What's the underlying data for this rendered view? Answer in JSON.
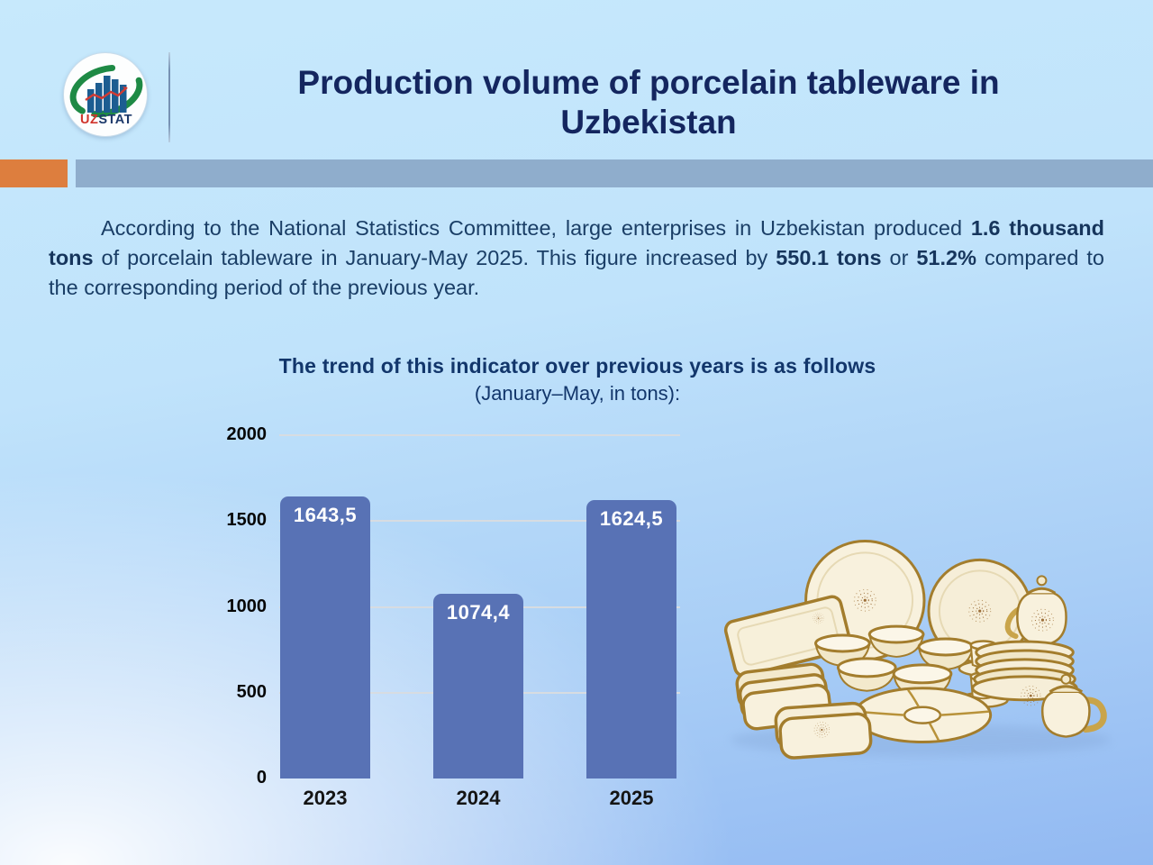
{
  "header": {
    "title_line1": "Production volume of porcelain tableware in",
    "title_line2": "Uzbekistan",
    "logo_uz": "UZ",
    "logo_stat": "STAT"
  },
  "colors": {
    "accent_orange": "#dd7e3e",
    "accent_steel_blue": "#8fadcc",
    "title_navy": "#14265f",
    "text_navy": "#1a3e66",
    "bar_blue": "#5872b5"
  },
  "paragraph": {
    "segments": [
      {
        "text": "According to the National Statistics Committee, large enterprises in Uzbekistan produced ",
        "bold": false
      },
      {
        "text": "1.6 thousand tons",
        "bold": true
      },
      {
        "text": " of porcelain tableware in January-May 2025. This figure increased by ",
        "bold": false
      },
      {
        "text": "550.1 tons",
        "bold": true
      },
      {
        "text": " or ",
        "bold": false
      },
      {
        "text": "51.2%",
        "bold": true
      },
      {
        "text": " compared to the corresponding period of the previous year.",
        "bold": false
      }
    ]
  },
  "chart": {
    "title_line1": "The trend of this indicator over previous years is as follows",
    "title_line2": "(January–May, in tons):"
  },
  "chart_data": {
    "type": "bar",
    "title": "The trend of this indicator over previous years is as follows (January–May, in tons)",
    "categories": [
      "2023",
      "2024",
      "2025"
    ],
    "values": [
      1643.5,
      1074.4,
      1624.5
    ],
    "value_labels": [
      "1643,5",
      "1074,4",
      "1624,5"
    ],
    "y_ticks": [
      2000,
      1500,
      1000,
      500,
      0
    ],
    "ylim": [
      0,
      2000
    ],
    "xlabel": "",
    "ylabel": "",
    "grid": true,
    "legend": "none",
    "bar_color": "#5872b5",
    "value_label_color": "#ffffff"
  },
  "illustration": {
    "name": "porcelain-tableware-set"
  }
}
